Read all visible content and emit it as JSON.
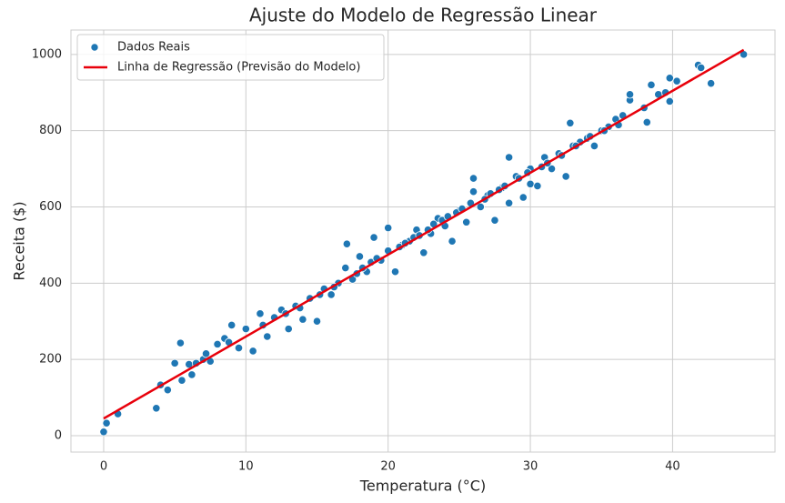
{
  "chart_data": {
    "type": "scatter",
    "title": "Ajuste do Modelo de Regressão Linear",
    "x_label": "Temperatura (°C)",
    "y_label": "Receita ($)",
    "xlim": [
      -2.3,
      47.2
    ],
    "ylim": [
      -43,
      1064
    ],
    "xticks": [
      0,
      10,
      20,
      30,
      40
    ],
    "yticks": [
      0,
      200,
      400,
      600,
      800,
      1000
    ],
    "grid": true,
    "legend": "upper left",
    "series": [
      {
        "name": "Dados Reais",
        "type": "scatter",
        "color": "#1f77b4",
        "x": [
          0,
          0.2,
          1,
          3.7,
          4,
          4.5,
          5.4,
          5,
          5.5,
          6,
          6.2,
          6.5,
          7,
          7.5,
          8,
          8.5,
          9,
          9.5,
          10,
          10.5,
          11,
          11.5,
          12,
          12.5,
          13,
          13.5,
          14,
          14.5,
          15,
          15.5,
          16,
          16.5,
          17,
          17.1,
          17.5,
          18,
          18.5,
          19,
          19.5,
          20,
          20,
          20.5,
          21,
          21.5,
          22,
          22.5,
          23,
          23.5,
          24,
          24.5,
          25,
          25.5,
          26,
          26,
          26.5,
          27,
          27.5,
          28,
          28.5,
          28.5,
          29,
          29.5,
          30,
          30,
          30.5,
          31,
          31.5,
          32,
          32.5,
          32.8,
          33,
          33.5,
          34,
          34.5,
          35,
          35.5,
          36,
          36.5,
          37,
          37,
          38,
          38.2,
          38.5,
          39,
          39.5,
          39.8,
          39.8,
          40.3,
          41.8,
          42,
          42.7,
          45,
          7.2,
          8.8,
          11.2,
          12.8,
          13.8,
          15.2,
          16.2,
          17.8,
          18.2,
          18.8,
          19.2,
          20.8,
          21.2,
          21.8,
          22.2,
          22.8,
          23.2,
          23.8,
          24.2,
          24.8,
          25.2,
          25.8,
          26.8,
          27.2,
          27.8,
          28.2,
          29.2,
          29.8,
          30.8,
          31.2,
          32.2,
          33.2,
          34.2,
          35.2,
          36.2
        ],
        "values": [
          10,
          33,
          57,
          72,
          133,
          120,
          243,
          190,
          145,
          187,
          160,
          190,
          200,
          195,
          240,
          255,
          290,
          230,
          280,
          222,
          320,
          260,
          310,
          330,
          280,
          340,
          305,
          360,
          300,
          385,
          370,
          400,
          440,
          503,
          410,
          470,
          430,
          520,
          460,
          485,
          545,
          430,
          500,
          510,
          540,
          480,
          530,
          570,
          550,
          510,
          590,
          560,
          640,
          675,
          600,
          630,
          565,
          650,
          730,
          610,
          680,
          625,
          700,
          660,
          655,
          730,
          700,
          740,
          680,
          820,
          760,
          770,
          780,
          760,
          800,
          810,
          830,
          840,
          880,
          895,
          860,
          822,
          920,
          895,
          900,
          938,
          877,
          930,
          972,
          965,
          924,
          1000,
          215,
          245,
          290,
          320,
          335,
          370,
          390,
          425,
          440,
          455,
          465,
          495,
          505,
          520,
          525,
          540,
          555,
          565,
          575,
          585,
          595,
          610,
          620,
          635,
          645,
          655,
          675,
          690,
          705,
          715,
          735,
          760,
          785,
          800,
          815
        ]
      },
      {
        "name": "Linha de Regressão (Previsão do Modelo)",
        "type": "line",
        "color": "#e8000b",
        "x": [
          0,
          45
        ],
        "values": [
          45,
          1012
        ]
      }
    ]
  }
}
